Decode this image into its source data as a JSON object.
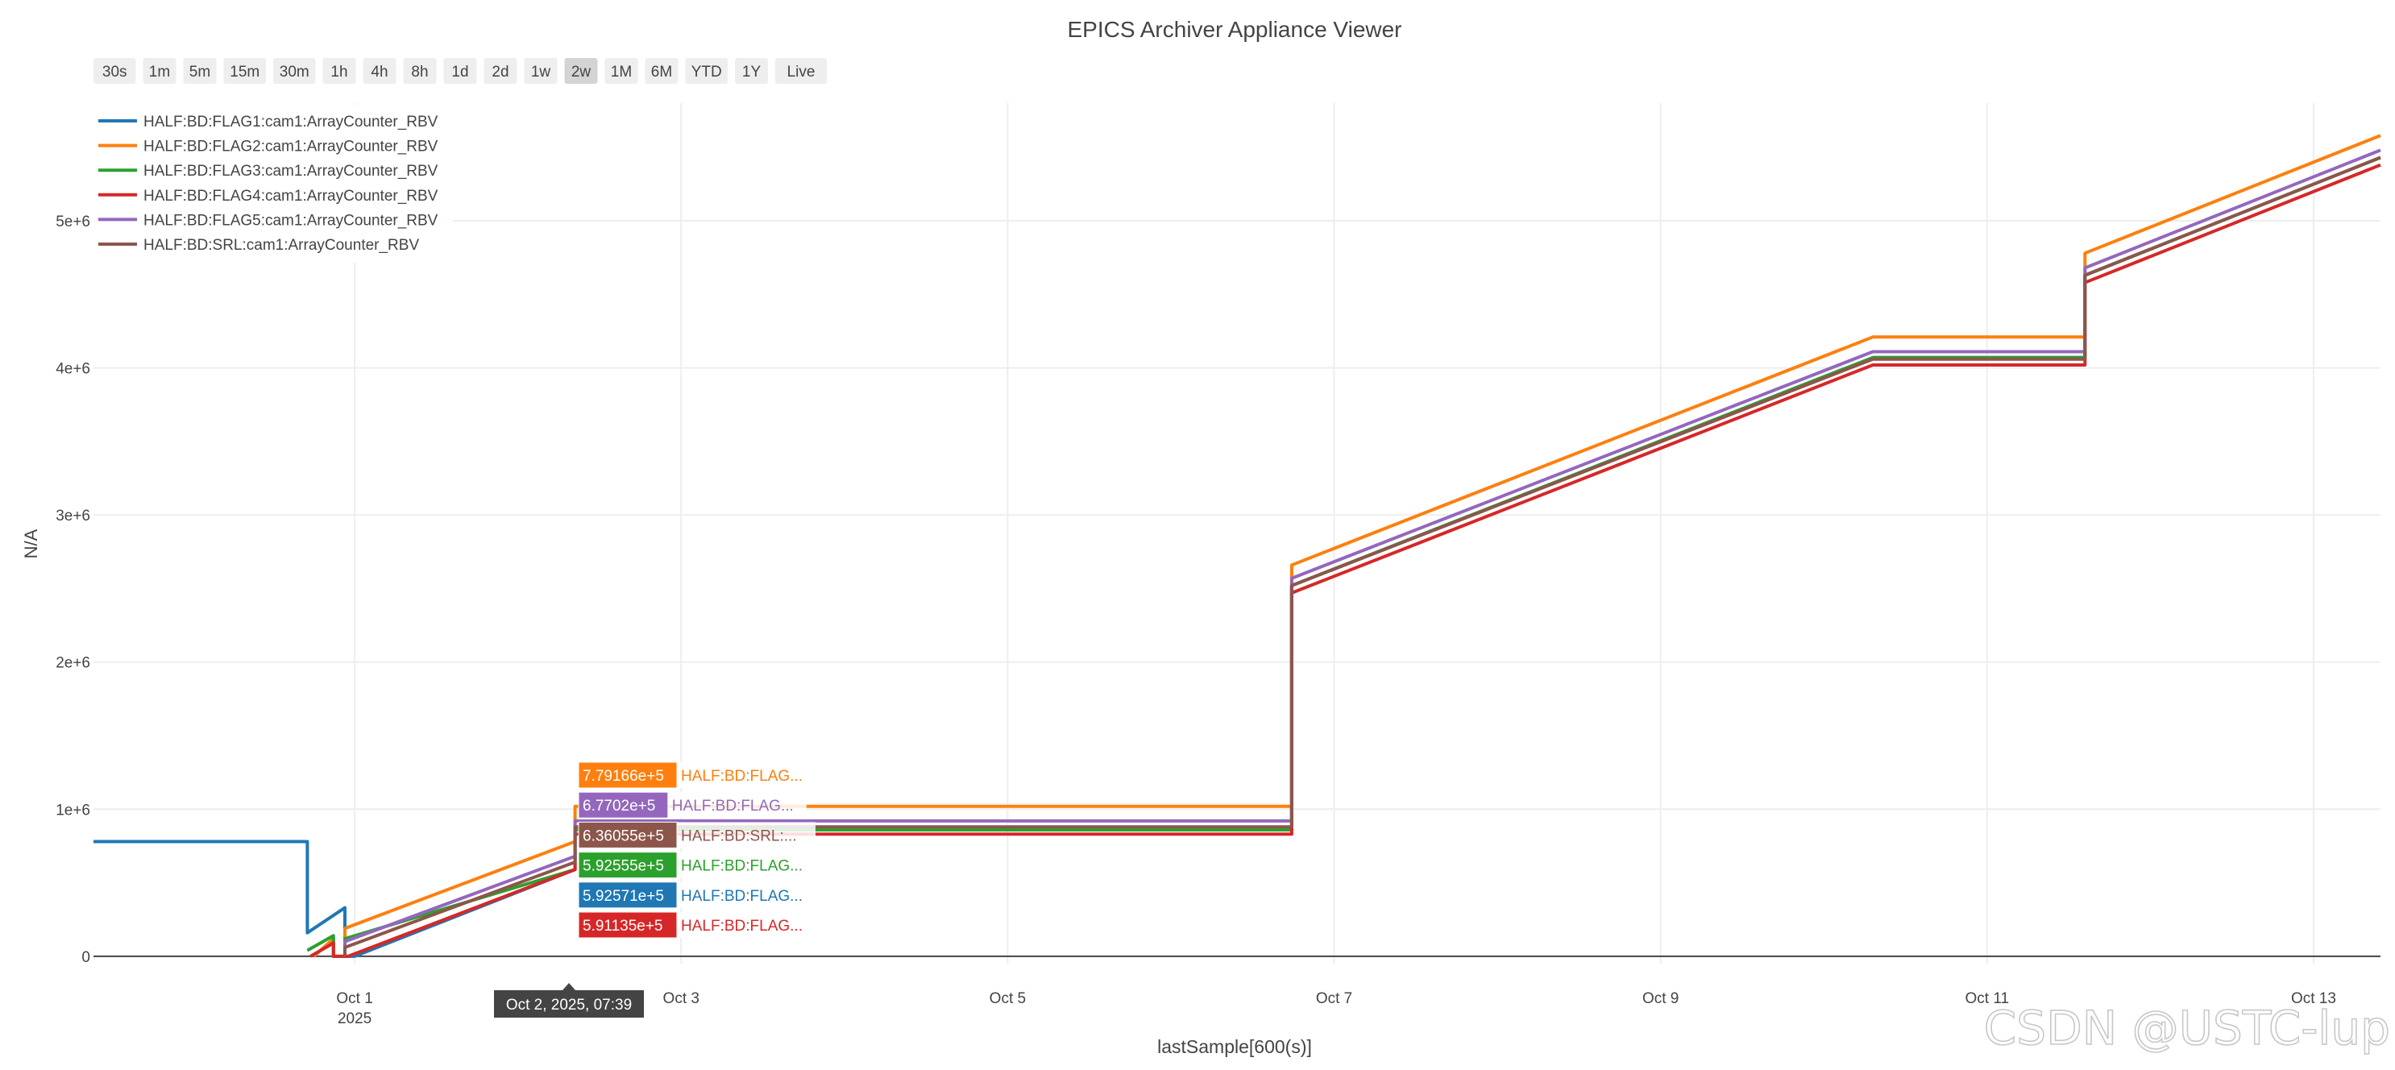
{
  "page": {
    "title": "EPICS Archiver Appliance Viewer",
    "watermark": "CSDN @USTC-lup"
  },
  "range_selector": {
    "buttons": [
      "30s",
      "1m",
      "5m",
      "15m",
      "30m",
      "1h",
      "4h",
      "8h",
      "1d",
      "2d",
      "1w",
      "2w",
      "1M",
      "6M",
      "YTD",
      "1Y",
      "Live"
    ],
    "active": "2w"
  },
  "hover": {
    "time_label": "Oct 2, 2025, 07:39",
    "labels": [
      {
        "value": "7.79166e+5",
        "name": "HALF:BD:FLAG...",
        "color": "#ff7f0e"
      },
      {
        "value": "6.7702e+5",
        "name": "HALF:BD:FLAG...",
        "color": "#9467bd"
      },
      {
        "value": "6.36055e+5",
        "name": "HALF:BD:SRL:...",
        "color": "#8c564b"
      },
      {
        "value": "5.92555e+5",
        "name": "HALF:BD:FLAG...",
        "color": "#2ca02c"
      },
      {
        "value": "5.92571e+5",
        "name": "HALF:BD:FLAG...",
        "color": "#1f77b4"
      },
      {
        "value": "5.91135e+5",
        "name": "HALF:BD:FLAG...",
        "color": "#d62728"
      }
    ]
  },
  "chart_data": {
    "type": "line",
    "title": "EPICS Archiver Appliance Viewer",
    "xlabel": "lastSample[600(s)]",
    "ylabel": "N/A",
    "x_unit": "days from Sep 29, 2025 00:00",
    "xlim": [
      -1.6,
      12.41
    ],
    "ylim": [
      -0.05,
      5.8
    ],
    "y_scale_note": "values in units of 1e+6",
    "x_ticks": [
      {
        "x": 0.0,
        "label": "Oct 1",
        "sub": "2025"
      },
      {
        "x": 2.0,
        "label": "Oct 3",
        "sub": ""
      },
      {
        "x": 4.0,
        "label": "Oct 5",
        "sub": ""
      },
      {
        "x": 6.0,
        "label": "Oct 7",
        "sub": ""
      },
      {
        "x": 8.0,
        "label": "Oct 9",
        "sub": ""
      },
      {
        "x": 10.0,
        "label": "Oct 11",
        "sub": ""
      },
      {
        "x": 12.0,
        "label": "Oct 13",
        "sub": ""
      }
    ],
    "y_ticks": [
      {
        "y": 0,
        "label": "0"
      },
      {
        "y": 1,
        "label": "1e+6"
      },
      {
        "y": 2,
        "label": "2e+6"
      },
      {
        "y": 3,
        "label": "3e+6"
      },
      {
        "y": 4,
        "label": "4e+6"
      },
      {
        "y": 5,
        "label": "5e+6"
      }
    ],
    "grid": true,
    "legend_position": "top-left",
    "series": [
      {
        "name": "HALF:BD:FLAG1:cam1:ArrayCounter_RBV",
        "color": "#1f77b4",
        "points": [
          [
            -1.6,
            0.78
          ],
          [
            -0.29,
            0.78
          ],
          [
            -0.29,
            0.16
          ],
          [
            -0.06,
            0.33
          ],
          [
            -0.06,
            0.0
          ],
          [
            0.0,
            0.0
          ],
          [
            1.35,
            0.59
          ],
          [
            1.35,
            0.86
          ],
          [
            5.74,
            0.86
          ],
          [
            5.74,
            2.52
          ],
          [
            9.3,
            4.07
          ],
          [
            9.3,
            4.07
          ],
          [
            10.6,
            4.07
          ],
          [
            10.6,
            4.63
          ],
          [
            12.41,
            5.43
          ]
        ]
      },
      {
        "name": "HALF:BD:FLAG2:cam1:ArrayCounter_RBV",
        "color": "#ff7f0e",
        "points": [
          [
            -0.25,
            0.0
          ],
          [
            -0.13,
            0.12
          ],
          [
            -0.13,
            0.0
          ],
          [
            -0.06,
            0.0
          ],
          [
            -0.06,
            0.19
          ],
          [
            1.35,
            0.78
          ],
          [
            1.35,
            1.02
          ],
          [
            5.74,
            1.02
          ],
          [
            5.74,
            2.66
          ],
          [
            9.3,
            4.21
          ],
          [
            10.6,
            4.21
          ],
          [
            10.6,
            4.78
          ],
          [
            12.41,
            5.58
          ]
        ]
      },
      {
        "name": "HALF:BD:FLAG3:cam1:ArrayCounter_RBV",
        "color": "#2ca02c",
        "points": [
          [
            -0.29,
            0.04
          ],
          [
            -0.13,
            0.14
          ],
          [
            -0.13,
            0.0
          ],
          [
            -0.06,
            0.0
          ],
          [
            -0.06,
            0.12
          ],
          [
            1.35,
            0.59
          ],
          [
            1.35,
            0.86
          ],
          [
            5.74,
            0.86
          ],
          [
            5.74,
            2.52
          ],
          [
            9.3,
            4.07
          ],
          [
            10.6,
            4.07
          ],
          [
            10.6,
            4.63
          ],
          [
            12.41,
            5.43
          ]
        ]
      },
      {
        "name": "HALF:BD:FLAG4:cam1:ArrayCounter_RBV",
        "color": "#d62728",
        "points": [
          [
            -0.27,
            0.0
          ],
          [
            -0.13,
            0.09
          ],
          [
            -0.13,
            0.0
          ],
          [
            -0.04,
            0.0
          ],
          [
            1.35,
            0.59
          ],
          [
            1.35,
            0.83
          ],
          [
            5.74,
            0.83
          ],
          [
            5.74,
            2.47
          ],
          [
            9.3,
            4.02
          ],
          [
            10.6,
            4.02
          ],
          [
            10.6,
            4.58
          ],
          [
            12.41,
            5.38
          ]
        ]
      },
      {
        "name": "HALF:BD:FLAG5:cam1:ArrayCounter_RBV",
        "color": "#9467bd",
        "points": [
          [
            -0.06,
            0.0
          ],
          [
            -0.06,
            0.1
          ],
          [
            1.35,
            0.68
          ],
          [
            1.35,
            0.92
          ],
          [
            5.74,
            0.92
          ],
          [
            5.74,
            2.57
          ],
          [
            9.3,
            4.11
          ],
          [
            10.6,
            4.11
          ],
          [
            10.6,
            4.68
          ],
          [
            12.41,
            5.48
          ]
        ]
      },
      {
        "name": "HALF:BD:SRL:cam1:ArrayCounter_RBV",
        "color": "#8c564b",
        "points": [
          [
            -0.06,
            0.0
          ],
          [
            -0.06,
            0.06
          ],
          [
            1.35,
            0.64
          ],
          [
            1.35,
            0.88
          ],
          [
            5.74,
            0.88
          ],
          [
            5.74,
            2.52
          ],
          [
            9.3,
            4.06
          ],
          [
            10.6,
            4.06
          ],
          [
            10.6,
            4.63
          ],
          [
            12.41,
            5.43
          ]
        ]
      }
    ]
  }
}
